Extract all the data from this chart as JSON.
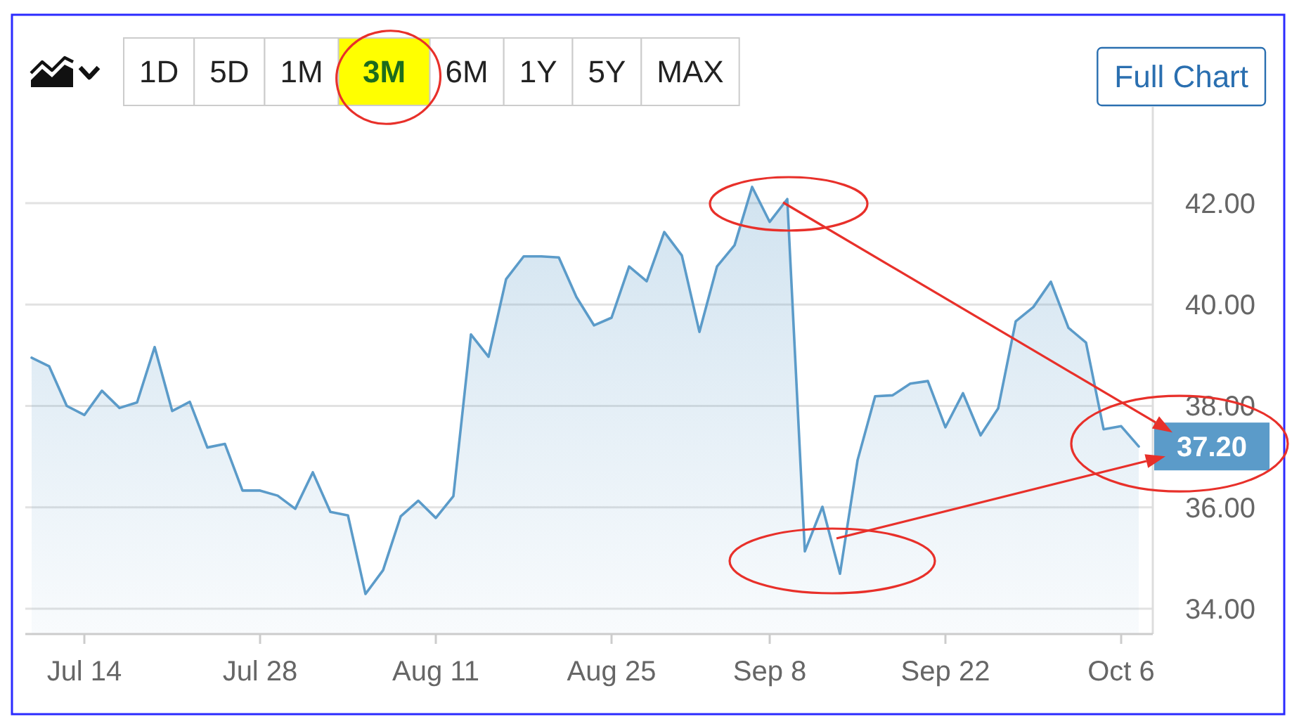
{
  "chart_data": {
    "type": "area",
    "categories": [
      null,
      null,
      null,
      "Jul 14",
      null,
      null,
      null,
      null,
      null,
      null,
      null,
      null,
      null,
      "Jul 28",
      null,
      null,
      null,
      null,
      null,
      null,
      null,
      null,
      null,
      "Aug 11",
      null,
      null,
      null,
      null,
      null,
      null,
      null,
      null,
      null,
      "Aug 25",
      null,
      null,
      null,
      null,
      null,
      null,
      null,
      null,
      "Sep 8",
      null,
      null,
      null,
      null,
      null,
      null,
      null,
      null,
      null,
      "Sep 22",
      null,
      null,
      null,
      null,
      null,
      null,
      null,
      null,
      null,
      "Oct 6",
      null
    ],
    "values": [
      38.95,
      38.78,
      38.0,
      37.82,
      38.3,
      37.96,
      38.07,
      39.16,
      37.9,
      38.08,
      37.18,
      37.25,
      36.33,
      36.33,
      36.23,
      35.97,
      36.69,
      35.91,
      35.84,
      34.29,
      34.76,
      35.82,
      36.13,
      35.79,
      36.22,
      39.41,
      38.97,
      40.5,
      40.95,
      40.95,
      40.93,
      40.15,
      39.59,
      39.74,
      40.75,
      40.46,
      41.43,
      40.97,
      39.46,
      40.75,
      41.17,
      42.32,
      41.63,
      42.08,
      35.13,
      36.01,
      34.69,
      36.93,
      38.19,
      38.21,
      38.44,
      38.49,
      37.58,
      38.25,
      37.42,
      37.95,
      39.67,
      39.95,
      40.45,
      39.54,
      39.25,
      37.54,
      37.6,
      37.2
    ],
    "value_labels": [
      null,
      null,
      null,
      null,
      null,
      null,
      null,
      null,
      null,
      null,
      null,
      null,
      null,
      null,
      null,
      null,
      null,
      null,
      null,
      null,
      null,
      null,
      null,
      null,
      null,
      null,
      null,
      null,
      null,
      null,
      null,
      null,
      null,
      null,
      null,
      null,
      null,
      null,
      null,
      null,
      null,
      null,
      null,
      null,
      null,
      null,
      null,
      null,
      null,
      null,
      null,
      null,
      null,
      null,
      null,
      null,
      null,
      null,
      null,
      null,
      null,
      null,
      null,
      "37.20"
    ],
    "color": "#5b9bc9",
    "ylim": [
      33.5,
      43.9
    ],
    "yticks": [
      {
        "value": 34,
        "label": "34.00"
      },
      {
        "value": 36,
        "label": "36.00"
      },
      {
        "value": 38,
        "label": "38.00"
      },
      {
        "value": 40,
        "label": "40.00"
      },
      {
        "value": 42,
        "label": "42.00"
      }
    ],
    "grid": "y",
    "annotations": [
      "1D",
      "5D",
      "1M",
      "3M",
      "6M",
      "1Y",
      "5Y",
      "MAX",
      "Full Chart"
    ]
  }
}
